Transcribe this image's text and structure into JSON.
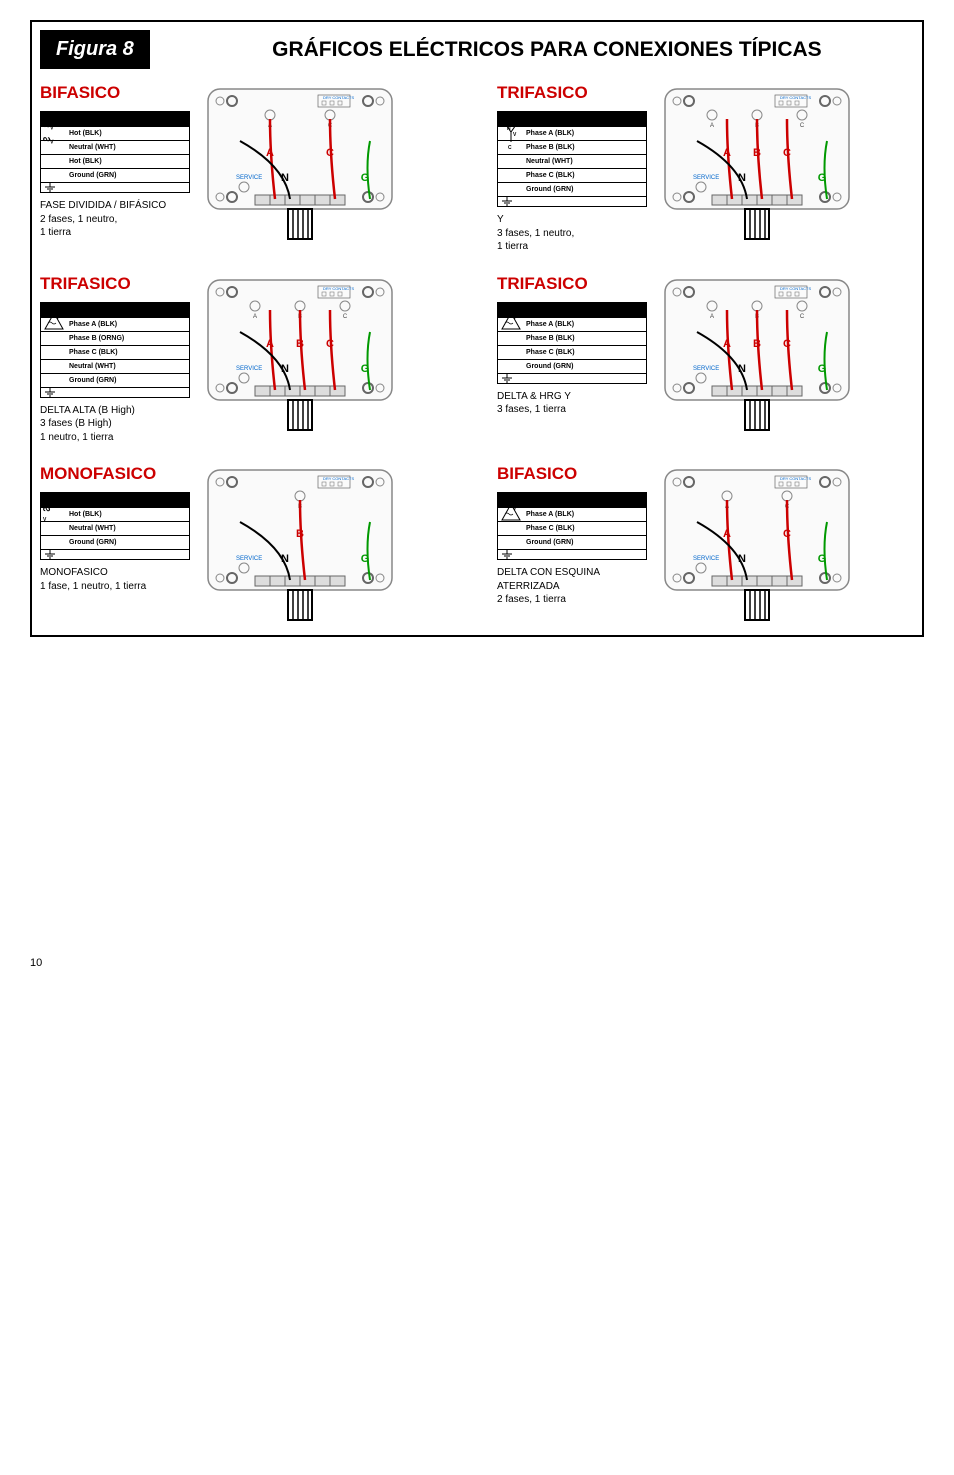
{
  "figuraLabel": "Figura 8",
  "mainTitle": "GRÁFICOS ELÉCTRICOS PARA CONEXIONES TÍPICAS",
  "pageNumber": "10",
  "colors": {
    "titleRed": "#cc0000",
    "wireRed": "#cc0000",
    "wireGreen": "#009900",
    "serviceBlue": "#0066cc",
    "black": "#000000"
  },
  "labels": {
    "service": "SERVICE",
    "dryContacts": "DRY CONTACTS"
  },
  "blocks": [
    {
      "title": "BIFASICO",
      "terminals": [
        "Hot (BLK)",
        "Neutral (WHT)",
        "Hot (BLK)",
        "Ground (GRN)"
      ],
      "sideGlyph": "coil2",
      "caption": "FASE DIVIDIDA / BIFÁSICO\n2 fases, 1 neutro,\n1 tierra",
      "conns": [
        "A",
        "C",
        "N",
        "G"
      ],
      "topKO": [
        "A",
        "C"
      ]
    },
    {
      "title": "TRIFASICO",
      "terminals": [
        "Phase A (BLK)",
        "Phase B (BLK)",
        "Neutral (WHT)",
        "Phase C (BLK)",
        "Ground (GRN)"
      ],
      "sideGlyph": "wye",
      "caption": "Y\n3 fases, 1 neutro,\n1 tierra",
      "conns": [
        "A",
        "B",
        "C",
        "N",
        "G"
      ],
      "topKO": [
        "A",
        "B",
        "C"
      ]
    },
    {
      "title": "TRIFASICO",
      "terminals": [
        "Phase A (BLK)",
        "Phase B (ORNG)",
        "Phase C (BLK)",
        "Neutral (WHT)",
        "Ground (GRN)"
      ],
      "sideGlyph": "delta",
      "caption": "DELTA ALTA (B High)\n3 fases (B High)\n1 neutro, 1 tierra",
      "conns": [
        "A",
        "B",
        "C",
        "N",
        "G"
      ],
      "topKO": [
        "A",
        "B",
        "C"
      ]
    },
    {
      "title": "TRIFASICO",
      "terminals": [
        "Phase A (BLK)",
        "Phase B (BLK)",
        "Phase C (BLK)",
        "Ground (GRN)"
      ],
      "sideGlyph": "delta",
      "caption": "DELTA & HRG Y\n3 fases, 1 tierra",
      "conns": [
        "A",
        "B",
        "C",
        "N",
        "G"
      ],
      "topKO": [
        "A",
        "B",
        "C"
      ]
    },
    {
      "title": "MONOFASICO",
      "terminals": [
        "Hot (BLK)",
        "Neutral (WHT)",
        "Ground (GRN)"
      ],
      "sideGlyph": "coil1",
      "caption": "MONOFASICO\n1 fase, 1 neutro, 1 tierra",
      "conns": [
        "B",
        "N",
        "G"
      ],
      "topKO": [
        "B"
      ]
    },
    {
      "title": "BIFASICO",
      "terminals": [
        "Phase A (BLK)",
        "Phase C (BLK)",
        "Ground (GRN)"
      ],
      "sideGlyph": "delta",
      "caption": "DELTA CON ESQUINA ATERRIZADA\n2 fases, 1 tierra",
      "conns": [
        "A",
        "C",
        "N",
        "G"
      ],
      "topKO": [
        "A",
        "C"
      ]
    }
  ]
}
